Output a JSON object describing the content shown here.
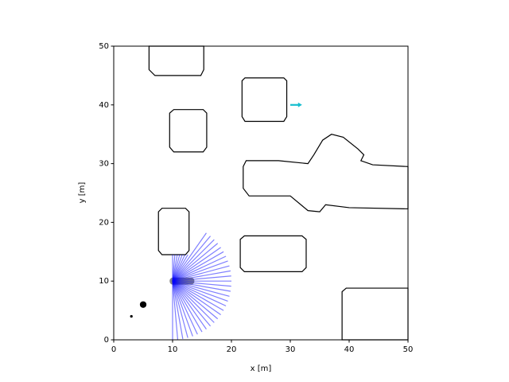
{
  "chart_data": {
    "type": "map",
    "xlabel": "x [m]",
    "ylabel": "y [m]",
    "xlim": [
      0,
      50
    ],
    "ylim": [
      0,
      50
    ],
    "xticks": [
      0,
      10,
      20,
      30,
      40,
      50
    ],
    "yticks": [
      0,
      10,
      20,
      30,
      40,
      50
    ],
    "obstacle_color": "#000000",
    "obstacles": [
      {
        "x": [
          6,
          6,
          7,
          14.8,
          15.3,
          15.3
        ],
        "y": [
          50,
          46,
          45,
          45,
          46,
          50
        ]
      },
      {
        "x": [
          21.8,
          21.8,
          22.3,
          28.9,
          29.4,
          29.4,
          28.9,
          22.3
        ],
        "y": [
          38,
          44.1,
          44.6,
          44.6,
          44.1,
          38,
          37.2,
          37.2
        ]
      },
      {
        "x": [
          9.5,
          9.5,
          10.2,
          15.2,
          15.8,
          15.8,
          15.2,
          10.2
        ],
        "y": [
          32.8,
          38.6,
          39.2,
          39.2,
          38.6,
          32.8,
          32.0,
          32.0
        ]
      },
      {
        "x": [
          22,
          22,
          23,
          30,
          33,
          35,
          36,
          40,
          50,
          50,
          44,
          42,
          42.5,
          41.5,
          39,
          37,
          35.5,
          34,
          33,
          28,
          22.5
        ],
        "y": [
          29.5,
          25.8,
          24.5,
          24.5,
          22,
          21.8,
          23,
          22.5,
          22.3,
          29.5,
          29.8,
          30.5,
          31.5,
          32.5,
          34.5,
          35,
          34,
          31.5,
          30,
          30.5,
          30.5
        ]
      },
      {
        "x": [
          7.6,
          7.6,
          8.2,
          12.2,
          12.8,
          12.8,
          12.2,
          8.2
        ],
        "y": [
          15.2,
          21.8,
          22.4,
          22.4,
          21.8,
          15.2,
          14.5,
          14.5
        ]
      },
      {
        "x": [
          21.5,
          21.5,
          22.2,
          32,
          32.7,
          32.7,
          32,
          22.2
        ],
        "y": [
          12.3,
          17.1,
          17.7,
          17.7,
          17.1,
          12.3,
          11.6,
          11.6
        ]
      },
      {
        "x": [
          38.8,
          38.8,
          39.5,
          50,
          50
        ],
        "y": [
          0,
          8.2,
          8.8,
          8.8,
          0
        ]
      }
    ],
    "lidar": {
      "origin": [
        10,
        10
      ],
      "color": "#0000ff",
      "angles": [
        -90,
        -85,
        -80,
        -75,
        -70,
        -65,
        -60,
        -55,
        -50,
        -45,
        -40,
        -35,
        -30,
        -25,
        -20,
        -15,
        -10,
        -5,
        0,
        5,
        10,
        15,
        20,
        25,
        30,
        35,
        40,
        45,
        50,
        55,
        60,
        65,
        70,
        75,
        80,
        85,
        90
      ],
      "ranges": [
        10,
        10,
        10,
        10,
        10,
        10,
        10,
        10,
        10,
        10,
        10,
        10,
        10,
        10,
        10,
        10,
        10,
        10,
        10,
        10,
        10,
        10,
        10,
        10,
        10,
        10,
        10,
        10,
        10,
        10,
        5.2,
        4.97,
        4.79,
        4.66,
        4.57,
        4.52,
        4.5
      ]
    },
    "robot": {
      "x": 11.6,
      "y": 10,
      "length": 4.2,
      "width": 1.2,
      "color": "#555555"
    },
    "goal": {
      "x": 30,
      "y": 40,
      "dx": 2,
      "dy": 0,
      "color": "#17becf"
    },
    "points": {
      "x": [
        5,
        3
      ],
      "y": [
        6,
        4
      ],
      "sizes": [
        5.5,
        2.2
      ],
      "color": "#000000"
    }
  }
}
